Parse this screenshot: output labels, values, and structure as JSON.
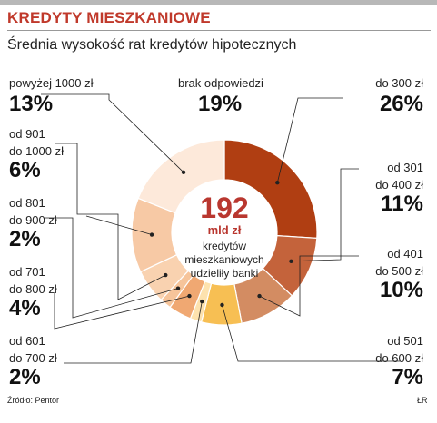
{
  "header": {
    "title": "KREDYTY MIESZKANIOWE",
    "subtitle": "Średnia wysokość rat kredytów hipotecznych"
  },
  "center": {
    "value": "192",
    "unit": "mld zł",
    "line1": "kredytów",
    "line2": "mieszkaniowych",
    "line3": "udzieliły banki"
  },
  "footer": {
    "source": "Źródło: Pentor",
    "credit": "ŁR"
  },
  "chart_data": {
    "type": "donut",
    "unit": "%",
    "slices": [
      {
        "label_lines": [
          "do 300 zł"
        ],
        "value": 26,
        "value_text": "26%",
        "color": "#b03e12"
      },
      {
        "label_lines": [
          "od 301",
          "do 400 zł"
        ],
        "value": 11,
        "value_text": "11%",
        "color": "#c4633b"
      },
      {
        "label_lines": [
          "od 401",
          "do 500 zł"
        ],
        "value": 10,
        "value_text": "10%",
        "color": "#d38c62"
      },
      {
        "label_lines": [
          "od 501",
          "do 600 zł"
        ],
        "value": 7,
        "value_text": "7%",
        "color": "#f7bf53"
      },
      {
        "label_lines": [
          "od 601",
          "do 700 zł"
        ],
        "value": 2,
        "value_text": "2%",
        "color": "#fde2ae"
      },
      {
        "label_lines": [
          "od 701",
          "do 800 zł"
        ],
        "value": 4,
        "value_text": "4%",
        "color": "#f0a872"
      },
      {
        "label_lines": [
          "od 801",
          "do 900 zł"
        ],
        "value": 2,
        "value_text": "2%",
        "color": "#f6c49a"
      },
      {
        "label_lines": [
          "od 901",
          "do 1000 zł"
        ],
        "value": 6,
        "value_text": "6%",
        "color": "#f9d2b0"
      },
      {
        "label_lines": [
          "powyżej 1000 zł"
        ],
        "value": 13,
        "value_text": "13%",
        "color": "#f7c9a5"
      },
      {
        "label_lines": [
          "brak odpowiedzi"
        ],
        "value": 19,
        "value_text": "19%",
        "color": "#fde9da"
      }
    ]
  }
}
